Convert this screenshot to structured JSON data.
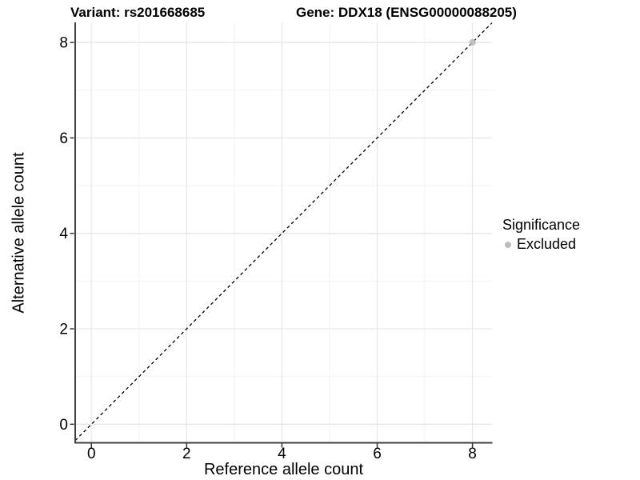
{
  "chart_data": {
    "type": "scatter",
    "titles": [
      "Variant: rs201668685",
      "Gene: DDX18 (ENSG00000088205)"
    ],
    "xlabel": "Reference allele count",
    "ylabel": "Alternative allele count",
    "xlim": [
      -0.34,
      8.41
    ],
    "ylim": [
      -0.38,
      8.42
    ],
    "x_ticks": {
      "major": [
        0,
        2,
        4,
        6,
        8
      ],
      "minor": [
        1,
        3,
        5,
        7
      ]
    },
    "y_ticks": {
      "major": [
        0,
        2,
        4,
        6,
        8
      ],
      "minor": [
        1,
        3,
        5,
        7
      ]
    },
    "grid": "major+minor",
    "reference_line": {
      "kind": "identity",
      "slope": 1,
      "intercept": 0,
      "linestyle": "dashed",
      "color": "#000000"
    },
    "series": [
      {
        "name": "Excluded",
        "color": "#bdbdbd",
        "points": [
          [
            8,
            8
          ]
        ]
      }
    ],
    "legend": {
      "title": "Significance",
      "position": "right",
      "items": [
        {
          "label": "Excluded",
          "color": "#bdbdbd",
          "marker": "circle"
        }
      ]
    },
    "style": {
      "background": "#ffffff",
      "grid_major_color": "#e7e7e7",
      "grid_minor_color": "#f3f3f3",
      "axis_line_color": "#3f3f3f",
      "tick_color": "#333333",
      "text_color": "#000000",
      "tick_label_size": 19
    }
  }
}
